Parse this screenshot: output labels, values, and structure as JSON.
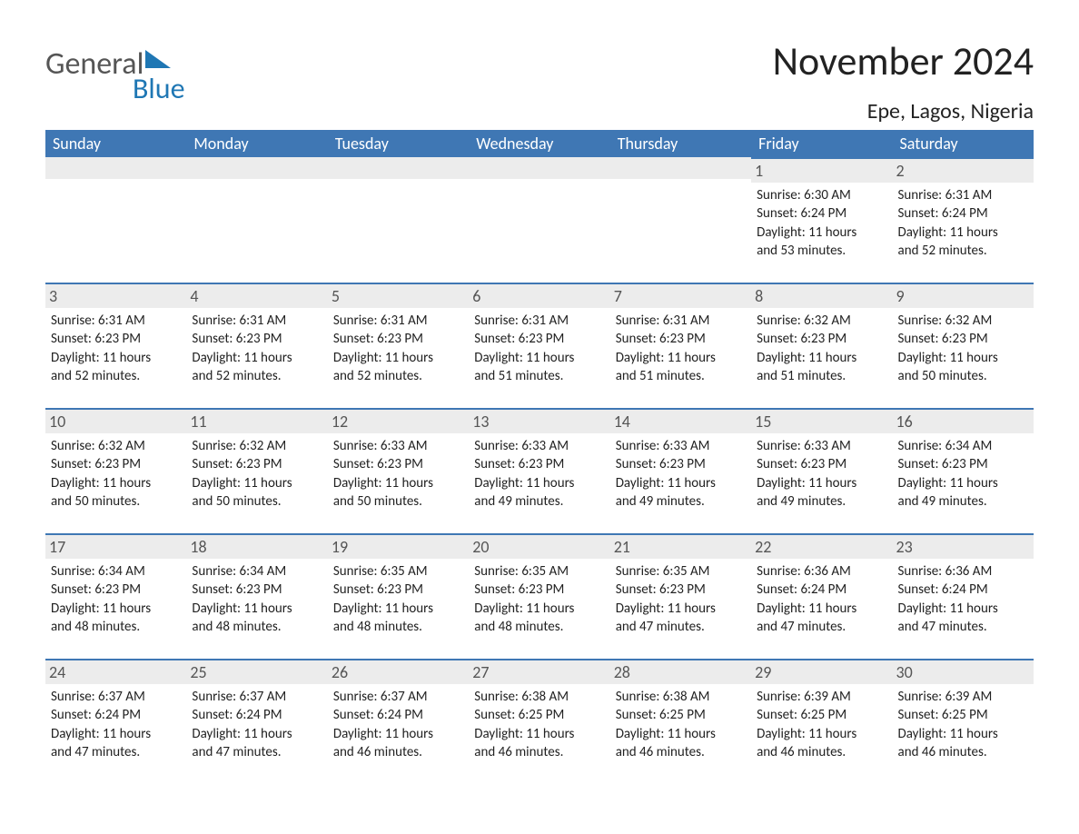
{
  "logo": {
    "text1": "General",
    "text2": "Blue",
    "triangle_color": "#1f77b4"
  },
  "title": "November 2024",
  "location": "Epe, Lagos, Nigeria",
  "colors": {
    "header_bg": "#3f77b4",
    "header_text": "#ffffff",
    "daybar_bg": "#ececec",
    "daybar_border": "#3f77b4",
    "body_text": "#222222"
  },
  "day_headers": [
    "Sunday",
    "Monday",
    "Tuesday",
    "Wednesday",
    "Thursday",
    "Friday",
    "Saturday"
  ],
  "weeks": [
    [
      null,
      null,
      null,
      null,
      null,
      {
        "n": "1",
        "sunrise": "Sunrise: 6:30 AM",
        "sunset": "Sunset: 6:24 PM",
        "dl1": "Daylight: 11 hours",
        "dl2": "and 53 minutes."
      },
      {
        "n": "2",
        "sunrise": "Sunrise: 6:31 AM",
        "sunset": "Sunset: 6:24 PM",
        "dl1": "Daylight: 11 hours",
        "dl2": "and 52 minutes."
      }
    ],
    [
      {
        "n": "3",
        "sunrise": "Sunrise: 6:31 AM",
        "sunset": "Sunset: 6:23 PM",
        "dl1": "Daylight: 11 hours",
        "dl2": "and 52 minutes."
      },
      {
        "n": "4",
        "sunrise": "Sunrise: 6:31 AM",
        "sunset": "Sunset: 6:23 PM",
        "dl1": "Daylight: 11 hours",
        "dl2": "and 52 minutes."
      },
      {
        "n": "5",
        "sunrise": "Sunrise: 6:31 AM",
        "sunset": "Sunset: 6:23 PM",
        "dl1": "Daylight: 11 hours",
        "dl2": "and 52 minutes."
      },
      {
        "n": "6",
        "sunrise": "Sunrise: 6:31 AM",
        "sunset": "Sunset: 6:23 PM",
        "dl1": "Daylight: 11 hours",
        "dl2": "and 51 minutes."
      },
      {
        "n": "7",
        "sunrise": "Sunrise: 6:31 AM",
        "sunset": "Sunset: 6:23 PM",
        "dl1": "Daylight: 11 hours",
        "dl2": "and 51 minutes."
      },
      {
        "n": "8",
        "sunrise": "Sunrise: 6:32 AM",
        "sunset": "Sunset: 6:23 PM",
        "dl1": "Daylight: 11 hours",
        "dl2": "and 51 minutes."
      },
      {
        "n": "9",
        "sunrise": "Sunrise: 6:32 AM",
        "sunset": "Sunset: 6:23 PM",
        "dl1": "Daylight: 11 hours",
        "dl2": "and 50 minutes."
      }
    ],
    [
      {
        "n": "10",
        "sunrise": "Sunrise: 6:32 AM",
        "sunset": "Sunset: 6:23 PM",
        "dl1": "Daylight: 11 hours",
        "dl2": "and 50 minutes."
      },
      {
        "n": "11",
        "sunrise": "Sunrise: 6:32 AM",
        "sunset": "Sunset: 6:23 PM",
        "dl1": "Daylight: 11 hours",
        "dl2": "and 50 minutes."
      },
      {
        "n": "12",
        "sunrise": "Sunrise: 6:33 AM",
        "sunset": "Sunset: 6:23 PM",
        "dl1": "Daylight: 11 hours",
        "dl2": "and 50 minutes."
      },
      {
        "n": "13",
        "sunrise": "Sunrise: 6:33 AM",
        "sunset": "Sunset: 6:23 PM",
        "dl1": "Daylight: 11 hours",
        "dl2": "and 49 minutes."
      },
      {
        "n": "14",
        "sunrise": "Sunrise: 6:33 AM",
        "sunset": "Sunset: 6:23 PM",
        "dl1": "Daylight: 11 hours",
        "dl2": "and 49 minutes."
      },
      {
        "n": "15",
        "sunrise": "Sunrise: 6:33 AM",
        "sunset": "Sunset: 6:23 PM",
        "dl1": "Daylight: 11 hours",
        "dl2": "and 49 minutes."
      },
      {
        "n": "16",
        "sunrise": "Sunrise: 6:34 AM",
        "sunset": "Sunset: 6:23 PM",
        "dl1": "Daylight: 11 hours",
        "dl2": "and 49 minutes."
      }
    ],
    [
      {
        "n": "17",
        "sunrise": "Sunrise: 6:34 AM",
        "sunset": "Sunset: 6:23 PM",
        "dl1": "Daylight: 11 hours",
        "dl2": "and 48 minutes."
      },
      {
        "n": "18",
        "sunrise": "Sunrise: 6:34 AM",
        "sunset": "Sunset: 6:23 PM",
        "dl1": "Daylight: 11 hours",
        "dl2": "and 48 minutes."
      },
      {
        "n": "19",
        "sunrise": "Sunrise: 6:35 AM",
        "sunset": "Sunset: 6:23 PM",
        "dl1": "Daylight: 11 hours",
        "dl2": "and 48 minutes."
      },
      {
        "n": "20",
        "sunrise": "Sunrise: 6:35 AM",
        "sunset": "Sunset: 6:23 PM",
        "dl1": "Daylight: 11 hours",
        "dl2": "and 48 minutes."
      },
      {
        "n": "21",
        "sunrise": "Sunrise: 6:35 AM",
        "sunset": "Sunset: 6:23 PM",
        "dl1": "Daylight: 11 hours",
        "dl2": "and 47 minutes."
      },
      {
        "n": "22",
        "sunrise": "Sunrise: 6:36 AM",
        "sunset": "Sunset: 6:24 PM",
        "dl1": "Daylight: 11 hours",
        "dl2": "and 47 minutes."
      },
      {
        "n": "23",
        "sunrise": "Sunrise: 6:36 AM",
        "sunset": "Sunset: 6:24 PM",
        "dl1": "Daylight: 11 hours",
        "dl2": "and 47 minutes."
      }
    ],
    [
      {
        "n": "24",
        "sunrise": "Sunrise: 6:37 AM",
        "sunset": "Sunset: 6:24 PM",
        "dl1": "Daylight: 11 hours",
        "dl2": "and 47 minutes."
      },
      {
        "n": "25",
        "sunrise": "Sunrise: 6:37 AM",
        "sunset": "Sunset: 6:24 PM",
        "dl1": "Daylight: 11 hours",
        "dl2": "and 47 minutes."
      },
      {
        "n": "26",
        "sunrise": "Sunrise: 6:37 AM",
        "sunset": "Sunset: 6:24 PM",
        "dl1": "Daylight: 11 hours",
        "dl2": "and 46 minutes."
      },
      {
        "n": "27",
        "sunrise": "Sunrise: 6:38 AM",
        "sunset": "Sunset: 6:25 PM",
        "dl1": "Daylight: 11 hours",
        "dl2": "and 46 minutes."
      },
      {
        "n": "28",
        "sunrise": "Sunrise: 6:38 AM",
        "sunset": "Sunset: 6:25 PM",
        "dl1": "Daylight: 11 hours",
        "dl2": "and 46 minutes."
      },
      {
        "n": "29",
        "sunrise": "Sunrise: 6:39 AM",
        "sunset": "Sunset: 6:25 PM",
        "dl1": "Daylight: 11 hours",
        "dl2": "and 46 minutes."
      },
      {
        "n": "30",
        "sunrise": "Sunrise: 6:39 AM",
        "sunset": "Sunset: 6:25 PM",
        "dl1": "Daylight: 11 hours",
        "dl2": "and 46 minutes."
      }
    ]
  ]
}
